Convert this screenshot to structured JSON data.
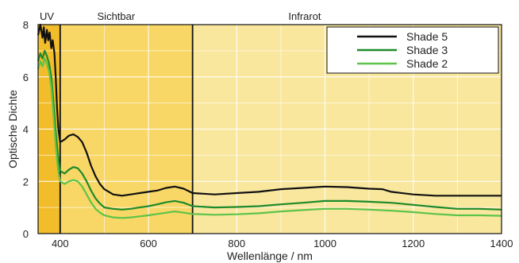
{
  "chart_data": {
    "type": "line",
    "xlabel": "Wellenlänge / nm",
    "ylabel": "Optische Dichte",
    "xlim": [
      350,
      1400
    ],
    "ylim": [
      0,
      8
    ],
    "x_ticks": [
      400,
      600,
      800,
      1000,
      1200,
      1400
    ],
    "x_tick_labels": [
      "400",
      "600",
      "800",
      "1000",
      "1200",
      "1400"
    ],
    "y_ticks": [
      0,
      2,
      4,
      6,
      8
    ],
    "y_tick_labels": [
      "0",
      "2",
      "4",
      "6",
      "8"
    ],
    "grid": true,
    "legend_position": "top-right",
    "regions": [
      {
        "label": "UV",
        "x0": 350,
        "x1": 400,
        "color": "#f2bd2a"
      },
      {
        "label": "Sichtbar",
        "x0": 400,
        "x1": 700,
        "color": "#f8d766"
      },
      {
        "label": "Infrarot",
        "x0": 700,
        "x1": 1400,
        "color": "#f9e79e"
      }
    ],
    "series": [
      {
        "name": "Shade 5",
        "color": "#111111",
        "x": [
          350,
          355,
          360,
          363,
          366,
          370,
          373,
          376,
          380,
          383,
          387,
          390,
          393,
          396,
          400,
          410,
          420,
          430,
          440,
          450,
          460,
          470,
          480,
          490,
          500,
          520,
          540,
          560,
          580,
          600,
          620,
          640,
          660,
          680,
          700,
          750,
          800,
          850,
          900,
          950,
          1000,
          1050,
          1100,
          1130,
          1150,
          1200,
          1250,
          1300,
          1350,
          1400
        ],
        "y": [
          7.6,
          8.0,
          7.5,
          7.9,
          7.3,
          7.8,
          7.4,
          7.7,
          7.1,
          7.4,
          6.9,
          6.0,
          4.8,
          4.0,
          3.5,
          3.6,
          3.75,
          3.8,
          3.7,
          3.5,
          3.1,
          2.6,
          2.2,
          1.9,
          1.7,
          1.5,
          1.45,
          1.5,
          1.55,
          1.6,
          1.65,
          1.75,
          1.8,
          1.72,
          1.55,
          1.5,
          1.55,
          1.6,
          1.7,
          1.75,
          1.8,
          1.78,
          1.72,
          1.7,
          1.6,
          1.5,
          1.45,
          1.45,
          1.45,
          1.45
        ]
      },
      {
        "name": "Shade 3",
        "color": "#1d8a2b",
        "x": [
          350,
          355,
          360,
          365,
          370,
          375,
          380,
          385,
          390,
          395,
          400,
          410,
          420,
          430,
          440,
          450,
          460,
          470,
          480,
          490,
          500,
          520,
          540,
          560,
          580,
          600,
          620,
          640,
          660,
          680,
          700,
          750,
          800,
          850,
          900,
          950,
          1000,
          1050,
          1100,
          1150,
          1200,
          1250,
          1300,
          1350,
          1400
        ],
        "y": [
          6.6,
          6.9,
          6.7,
          7.0,
          6.8,
          6.5,
          6.0,
          5.0,
          3.9,
          3.0,
          2.4,
          2.3,
          2.45,
          2.55,
          2.5,
          2.3,
          2.0,
          1.65,
          1.35,
          1.15,
          1.0,
          0.95,
          0.92,
          0.95,
          1.0,
          1.05,
          1.12,
          1.2,
          1.25,
          1.18,
          1.05,
          1.0,
          1.02,
          1.05,
          1.12,
          1.18,
          1.25,
          1.25,
          1.22,
          1.18,
          1.1,
          1.02,
          0.95,
          0.95,
          0.92
        ]
      },
      {
        "name": "Shade 2",
        "color": "#5cc44a",
        "x": [
          350,
          355,
          360,
          365,
          370,
          375,
          380,
          385,
          390,
          395,
          400,
          410,
          420,
          430,
          440,
          450,
          460,
          470,
          480,
          490,
          500,
          520,
          540,
          560,
          580,
          600,
          620,
          640,
          660,
          680,
          700,
          750,
          800,
          850,
          900,
          950,
          1000,
          1050,
          1100,
          1150,
          1200,
          1250,
          1300,
          1350,
          1400
        ],
        "y": [
          6.3,
          6.6,
          6.4,
          6.7,
          6.5,
          6.2,
          5.6,
          4.5,
          3.4,
          2.5,
          2.0,
          1.9,
          2.0,
          2.05,
          2.0,
          1.8,
          1.5,
          1.2,
          0.95,
          0.8,
          0.7,
          0.62,
          0.6,
          0.62,
          0.66,
          0.7,
          0.75,
          0.8,
          0.85,
          0.8,
          0.75,
          0.72,
          0.74,
          0.78,
          0.85,
          0.9,
          0.95,
          0.95,
          0.92,
          0.88,
          0.82,
          0.75,
          0.7,
          0.7,
          0.68
        ]
      }
    ]
  }
}
